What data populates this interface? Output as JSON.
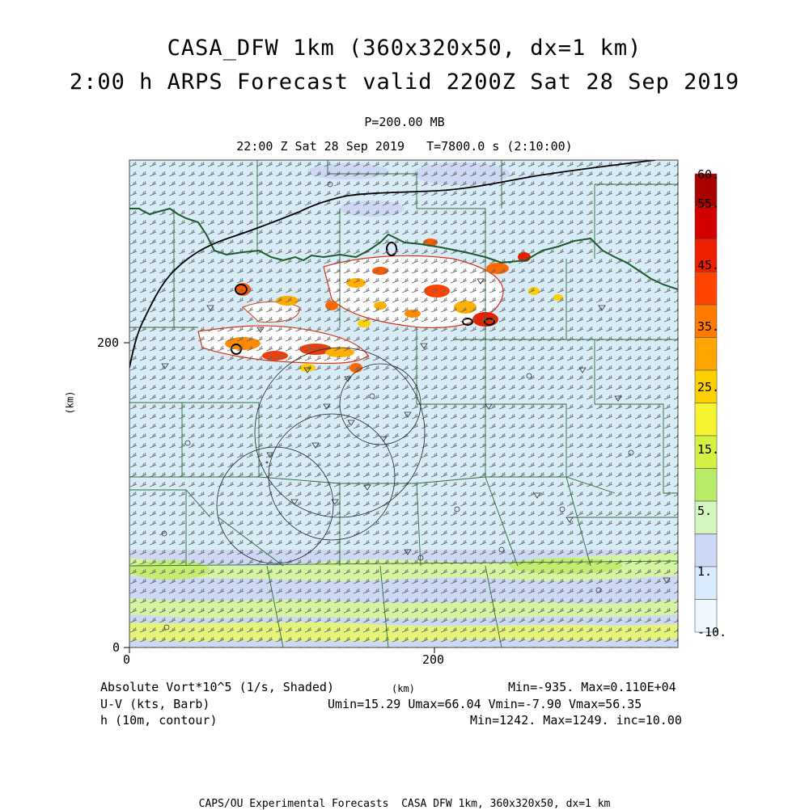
{
  "header": {
    "title_line1": "CASA_DFW 1km (360x320x50, dx=1 km)",
    "title_line2": "2:00 h ARPS Forecast valid 2200Z Sat 28 Sep 2019",
    "pressure": "P=200.00 MB",
    "time": "22:00 Z Sat 28 Sep 2019   T=7800.0 s (2:10:00)"
  },
  "axes": {
    "x_tick_labels": [
      "0",
      "200"
    ],
    "y_tick_labels": [
      "0",
      "200"
    ],
    "x_label": "(km)",
    "y_label": "(km)"
  },
  "colorbar": {
    "labels": [
      "60.",
      "55.",
      "45.",
      "35.",
      "25.",
      "15.",
      "5.",
      "1.",
      "-10."
    ],
    "colors": [
      "#aa0000",
      "#d40000",
      "#ee2000",
      "#ff4400",
      "#ff7a00",
      "#ffa400",
      "#ffd000",
      "#f4f430",
      "#d4f040",
      "#b8ec68",
      "#d4f4c0",
      "#ccd8f4",
      "#d8eafc",
      "#eef8fc"
    ]
  },
  "legend": {
    "var1": "Absolute Vort*10^5 (1/s, Shaded)",
    "var1_stats": "Min=-935. Max=0.110E+04",
    "var2": "U-V (kts, Barb)",
    "var2_stats": "Umin=15.29 Umax=66.04 Vmin=-7.90 Vmax=56.35",
    "var3": "h (10m, contour)",
    "var3_stats": "Min=1242. Max=1249. inc=10.00"
  },
  "footer": "CAPS/OU Experimental Forecasts  CASA DFW 1km, 360x320x50, dx=1 km"
}
